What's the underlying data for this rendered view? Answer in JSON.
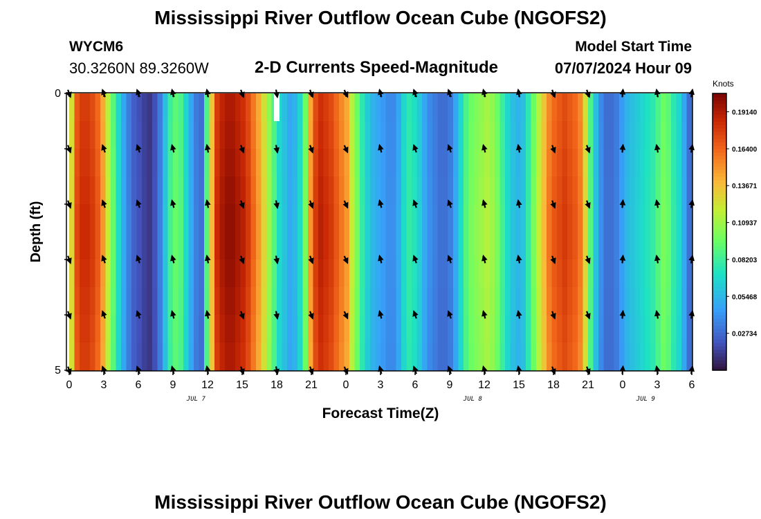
{
  "header": {
    "title": "Mississippi River Outflow Ocean Cube (NGOFS2)",
    "station": "WYCM6",
    "coords": "30.3260N  89.3260W",
    "subtitle": "2-D Currents Speed-Magnitude",
    "model_label": "Model Start Time",
    "model_time": "07/07/2024 Hour 09"
  },
  "footer": {
    "title_repeat": "Mississippi River Outflow Ocean Cube (NGOFS2)"
  },
  "chart_data": {
    "type": "heatmap",
    "title": "2-D Currents Speed-Magnitude",
    "xlabel": "Forecast Time(Z)",
    "ylabel": "Depth (ft)",
    "x_ticks": [
      "0",
      "3",
      "6",
      "9",
      "12",
      "15",
      "18",
      "21",
      "0",
      "3",
      "6",
      "9",
      "12",
      "15",
      "18",
      "21",
      "0",
      "3",
      "6"
    ],
    "date_labels": [
      {
        "label": "JUL 7",
        "hour": 11
      },
      {
        "label": "JUL 8",
        "hour": 35
      },
      {
        "label": "JUL 9",
        "hour": 50
      }
    ],
    "y_ticks": [
      "0",
      "5"
    ],
    "ylim": [
      0,
      5
    ],
    "x_range_hours": [
      0,
      54
    ],
    "colorbar": {
      "label": "Knots",
      "ticks": [
        "0.19140",
        "0.16400",
        "0.13671",
        "0.10937",
        "0.08203",
        "0.05468",
        "0.02734"
      ],
      "min": 0.0,
      "max": 0.205
    },
    "speed_by_hour": [
      0.13,
      0.175,
      0.185,
      0.185,
      0.18,
      0.17,
      0.15,
      0.12,
      0.095,
      0.07,
      0.05,
      0.035,
      0.025,
      0.02,
      0.015,
      0.012,
      0.02,
      0.035,
      0.06,
      0.085,
      0.095,
      0.09,
      0.07,
      0.05,
      0.035,
      0.03,
      0.09,
      0.14,
      0.185,
      0.195,
      0.2,
      0.2,
      0.195,
      0.19,
      0.18,
      0.165,
      0.15,
      0.13,
      0.11,
      0.09,
      0.07,
      0.06,
      0.05,
      0.055,
      0.07,
      0.1,
      0.15,
      0.18,
      0.19,
      0.185,
      0.18,
      0.17,
      0.16,
      0.15,
      0.12,
      0.1,
      0.08,
      0.065,
      0.055,
      0.05,
      0.045,
      0.04,
      0.04,
      0.05,
      0.07,
      0.08,
      0.075,
      0.065,
      0.05,
      0.04,
      0.035,
      0.03,
      0.03,
      0.035,
      0.05,
      0.07,
      0.09,
      0.1,
      0.105,
      0.11,
      0.115,
      0.11,
      0.1,
      0.085,
      0.07,
      0.06,
      0.055,
      0.06,
      0.08,
      0.1,
      0.12,
      0.14,
      0.16,
      0.17,
      0.175,
      0.18,
      0.175,
      0.17,
      0.16,
      0.13,
      0.09,
      0.06,
      0.04,
      0.03,
      0.03,
      0.035,
      0.045,
      0.055,
      0.06,
      0.065,
      0.07,
      0.075,
      0.08,
      0.09,
      0.1,
      0.095,
      0.08,
      0.07,
      0.05,
      0.03
    ],
    "arrow_hours": [
      0,
      3,
      6,
      9,
      12,
      15,
      18,
      21,
      24,
      27,
      30,
      33,
      36,
      39,
      42,
      45,
      48,
      51,
      54
    ],
    "arrow_depths": [
      0,
      1,
      2,
      3,
      4,
      5
    ],
    "arrow_angle_deg": [
      160,
      -20,
      -20,
      -15,
      -10,
      160,
      170,
      160,
      155,
      -15,
      -20,
      -20,
      -15,
      -10,
      160,
      160,
      5,
      -10,
      10
    ],
    "missing_cells": [
      {
        "hour": 18,
        "depth_from": 0,
        "depth_to": 0.5
      }
    ]
  }
}
